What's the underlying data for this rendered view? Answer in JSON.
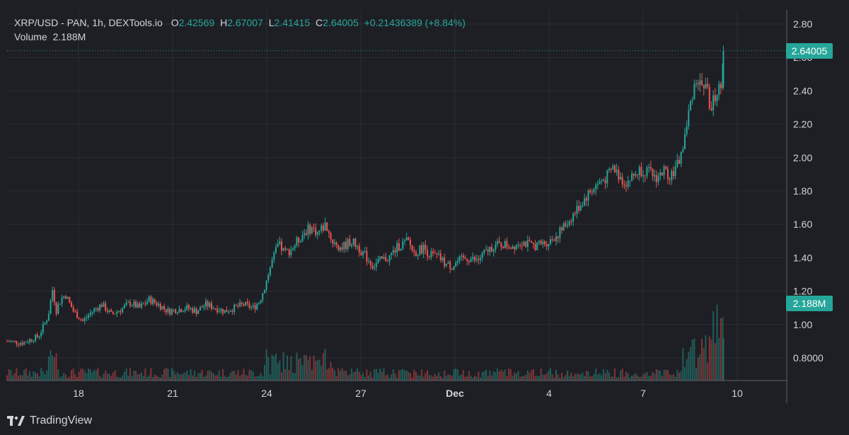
{
  "legend": {
    "symbol": "XRP/USD - PAN, 1h, DEXTools.io",
    "o_label": "O",
    "o_value": "2.42569",
    "h_label": "H",
    "h_value": "2.67007",
    "l_label": "L",
    "l_value": "2.41415",
    "c_label": "C",
    "c_value": "2.64005",
    "change": "+0.21436389 (+8.84%)",
    "volume_label": "Volume",
    "volume_value": "2.188M"
  },
  "badges": {
    "price": "2.64005",
    "volume": "2.188M"
  },
  "footer": {
    "brand": "TradingView",
    "logo_icon": "tradingview-logo-icon"
  },
  "colors": {
    "background": "#1e1f24",
    "up": "#26a69a",
    "down": "#ef5350",
    "grid": "#2b2d33",
    "text": "#d1d4dc"
  },
  "chart_data": {
    "type": "candlestick",
    "title": "XRP/USD - PAN, 1h, DEXTools.io",
    "ylim": [
      0.7,
      2.9
    ],
    "y_ticks": [
      "2.80",
      "2.60",
      "2.40",
      "2.20",
      "2.00",
      "1.80",
      "1.60",
      "1.40",
      "1.20",
      "1.00",
      "0.8000"
    ],
    "x_ticks": [
      "18",
      "21",
      "24",
      "27",
      "Dec",
      "4",
      "7",
      "10"
    ],
    "grid": true,
    "last_price": 2.64005,
    "close_series": [
      [
        0.0,
        0.9
      ],
      [
        0.5,
        0.89
      ],
      [
        1.0,
        0.93
      ],
      [
        1.3,
        1.05
      ],
      [
        1.45,
        1.22
      ],
      [
        1.55,
        1.08
      ],
      [
        1.7,
        1.15
      ],
      [
        1.85,
        1.18
      ],
      [
        2.1,
        1.08
      ],
      [
        2.4,
        1.02
      ],
      [
        2.7,
        1.08
      ],
      [
        3.0,
        1.12
      ],
      [
        3.3,
        1.06
      ],
      [
        3.6,
        1.09
      ],
      [
        3.9,
        1.13
      ],
      [
        4.2,
        1.1
      ],
      [
        4.5,
        1.15
      ],
      [
        4.8,
        1.12
      ],
      [
        5.1,
        1.08
      ],
      [
        5.4,
        1.09
      ],
      [
        5.7,
        1.1
      ],
      [
        6.0,
        1.08
      ],
      [
        6.3,
        1.12
      ],
      [
        6.6,
        1.1
      ],
      [
        6.9,
        1.08
      ],
      [
        7.2,
        1.1
      ],
      [
        7.5,
        1.12
      ],
      [
        7.8,
        1.1
      ],
      [
        8.0,
        1.14
      ],
      [
        8.2,
        1.25
      ],
      [
        8.4,
        1.38
      ],
      [
        8.6,
        1.48
      ],
      [
        8.8,
        1.43
      ],
      [
        9.0,
        1.45
      ],
      [
        9.2,
        1.5
      ],
      [
        9.45,
        1.56
      ],
      [
        9.65,
        1.58
      ],
      [
        9.85,
        1.55
      ],
      [
        10.1,
        1.6
      ],
      [
        10.3,
        1.5
      ],
      [
        10.6,
        1.46
      ],
      [
        10.9,
        1.5
      ],
      [
        11.1,
        1.47
      ],
      [
        11.4,
        1.4
      ],
      [
        11.6,
        1.35
      ],
      [
        11.8,
        1.38
      ],
      [
        12.1,
        1.4
      ],
      [
        12.4,
        1.47
      ],
      [
        12.7,
        1.5
      ],
      [
        12.9,
        1.43
      ],
      [
        13.2,
        1.46
      ],
      [
        13.4,
        1.42
      ],
      [
        13.7,
        1.4
      ],
      [
        13.9,
        1.36
      ],
      [
        14.1,
        1.35
      ],
      [
        14.3,
        1.38
      ],
      [
        14.6,
        1.4
      ],
      [
        14.9,
        1.38
      ],
      [
        15.1,
        1.42
      ],
      [
        15.4,
        1.47
      ],
      [
        15.7,
        1.48
      ],
      [
        16.0,
        1.47
      ],
      [
        16.3,
        1.5
      ],
      [
        16.6,
        1.47
      ],
      [
        16.9,
        1.48
      ],
      [
        17.2,
        1.5
      ],
      [
        17.5,
        1.55
      ],
      [
        17.8,
        1.62
      ],
      [
        18.1,
        1.7
      ],
      [
        18.4,
        1.78
      ],
      [
        18.7,
        1.84
      ],
      [
        19.0,
        1.88
      ],
      [
        19.2,
        1.94
      ],
      [
        19.4,
        1.89
      ],
      [
        19.6,
        1.85
      ],
      [
        19.8,
        1.88
      ],
      [
        20.0,
        1.92
      ],
      [
        20.2,
        1.93
      ],
      [
        20.4,
        1.9
      ],
      [
        20.6,
        1.88
      ],
      [
        20.8,
        1.92
      ],
      [
        21.0,
        1.9
      ],
      [
        21.2,
        1.93
      ],
      [
        21.4,
        2.05
      ],
      [
        21.55,
        2.2
      ],
      [
        21.7,
        2.38
      ],
      [
        21.85,
        2.48
      ],
      [
        22.0,
        2.42
      ],
      [
        22.15,
        2.45
      ],
      [
        22.3,
        2.28
      ],
      [
        22.45,
        2.38
      ],
      [
        22.6,
        2.42
      ],
      [
        22.7,
        2.64
      ]
    ],
    "volume": {
      "last": "2.188M"
    }
  }
}
